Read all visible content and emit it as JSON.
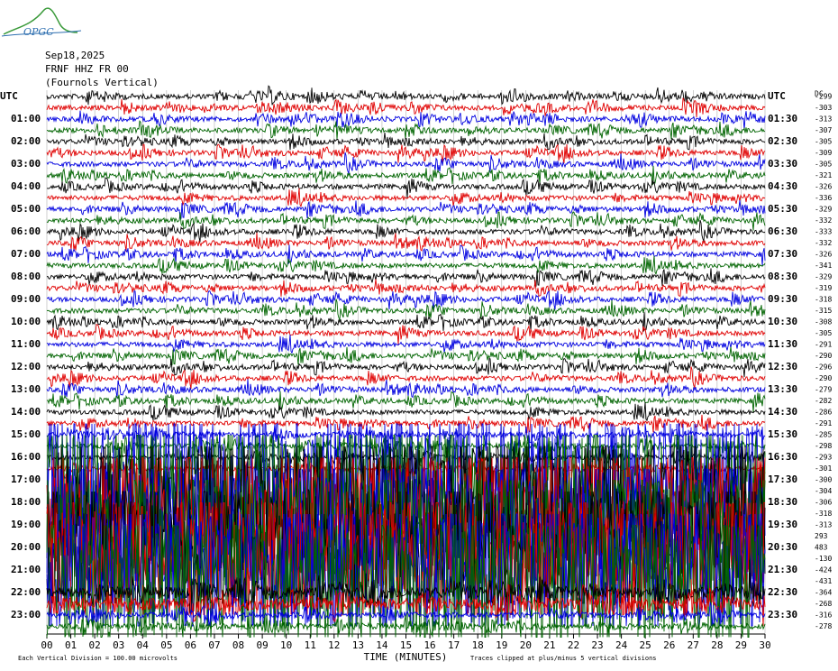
{
  "chart_data": {
    "type": "helicorder",
    "logo": "OPGC",
    "title": "Sep18,2025",
    "subtitle": "FRNF HHZ FR 00",
    "station": "(Fournols Vertical)",
    "left_labels": [
      "UTC",
      "01:00",
      "02:00",
      "03:00",
      "04:00",
      "05:00",
      "06:00",
      "07:00",
      "08:00",
      "09:00",
      "10:00",
      "11:00",
      "12:00",
      "13:00",
      "14:00",
      "15:00",
      "16:00",
      "17:00",
      "18:00",
      "19:00",
      "20:00",
      "21:00",
      "22:00",
      "23:00"
    ],
    "right_labels": [
      "UTC",
      "01:30",
      "02:30",
      "03:30",
      "04:30",
      "05:30",
      "06:30",
      "07:30",
      "08:30",
      "09:30",
      "10:30",
      "11:30",
      "12:30",
      "13:30",
      "14:30",
      "15:30",
      "16:30",
      "17:30",
      "18:30",
      "19:30",
      "20:30",
      "21:30",
      "22:30",
      "23:30"
    ],
    "dc_label": "DC",
    "dc_offsets": [
      -299,
      -303,
      -313,
      -307,
      -305,
      -309,
      -305,
      -321,
      -326,
      -336,
      -329,
      -332,
      -333,
      -332,
      -326,
      -341,
      -329,
      -319,
      -318,
      -315,
      -308,
      -305,
      -291,
      -290,
      -296,
      -290,
      -279,
      -282,
      -286,
      -291,
      -285,
      -298,
      -293,
      -301,
      -300,
      -304,
      -306,
      -318,
      -313,
      293,
      483,
      -130,
      -424,
      -431,
      -364,
      -268,
      -316,
      -278
    ],
    "colors": [
      "#000000",
      "#e00000",
      "#0000e0",
      "#006400"
    ],
    "xlim": [
      0,
      30
    ],
    "xticks": [
      {
        "value": 0,
        "label": "00"
      },
      {
        "value": 1,
        "label": "01"
      },
      {
        "value": 2,
        "label": "02"
      },
      {
        "value": 3,
        "label": "03"
      },
      {
        "value": 4,
        "label": "04"
      },
      {
        "value": 5,
        "label": "05"
      },
      {
        "value": 6,
        "label": "06"
      },
      {
        "value": 7,
        "label": "07"
      },
      {
        "value": 8,
        "label": "08"
      },
      {
        "value": 9,
        "label": "09"
      },
      10,
      11,
      12,
      13,
      14,
      15,
      16,
      17,
      18,
      19,
      20,
      21,
      22,
      23,
      24,
      25,
      26,
      27,
      28,
      29,
      30
    ],
    "xlabel": "TIME (MINUTES)",
    "footnote_left": "Each Vertical Division =  100.00 microvolts",
    "footnote_right": "Traces clipped at plus/minus 5 vertical divisions"
  }
}
